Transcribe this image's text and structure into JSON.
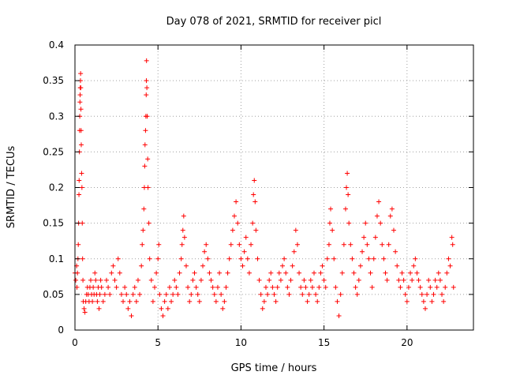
{
  "chart_data": {
    "type": "scatter",
    "title": "Day 078 of 2021, SRMTID for receiver picl",
    "xlabel": "GPS time / hours",
    "ylabel": "SRMTID / TECUs",
    "xlim": [
      0,
      24
    ],
    "ylim": [
      0,
      0.4
    ],
    "xticks": [
      0,
      5,
      10,
      15,
      20
    ],
    "xtick_labels": [
      "0",
      "5",
      "10",
      "15",
      "20"
    ],
    "yticks": [
      0,
      0.05,
      0.1,
      0.15,
      0.2,
      0.25,
      0.3,
      0.35,
      0.4
    ],
    "ytick_labels": [
      "0",
      "0.05",
      "0.1",
      "0.15",
      "0.2",
      "0.25",
      "0.3",
      "0.35",
      "0.4"
    ],
    "grid": true,
    "marker": "+",
    "color": "#ff0000",
    "series": [
      {
        "name": "SRMTID",
        "points": [
          [
            0.0,
            0.08
          ],
          [
            0.05,
            0.07
          ],
          [
            0.1,
            0.09
          ],
          [
            0.12,
            0.06
          ],
          [
            0.15,
            0.08
          ],
          [
            0.18,
            0.1
          ],
          [
            0.2,
            0.12
          ],
          [
            0.22,
            0.15
          ],
          [
            0.24,
            0.19
          ],
          [
            0.25,
            0.21
          ],
          [
            0.27,
            0.25
          ],
          [
            0.28,
            0.28
          ],
          [
            0.29,
            0.3
          ],
          [
            0.3,
            0.32
          ],
          [
            0.31,
            0.33
          ],
          [
            0.32,
            0.34
          ],
          [
            0.33,
            0.35
          ],
          [
            0.34,
            0.36
          ],
          [
            0.35,
            0.34
          ],
          [
            0.36,
            0.31
          ],
          [
            0.37,
            0.28
          ],
          [
            0.38,
            0.26
          ],
          [
            0.4,
            0.22
          ],
          [
            0.42,
            0.2
          ],
          [
            0.44,
            0.15
          ],
          [
            0.46,
            0.1
          ],
          [
            0.48,
            0.07
          ],
          [
            0.5,
            0.04
          ],
          [
            0.55,
            0.03
          ],
          [
            0.6,
            0.025
          ],
          [
            0.65,
            0.04
          ],
          [
            0.7,
            0.05
          ],
          [
            0.75,
            0.06
          ],
          [
            0.8,
            0.05
          ],
          [
            0.85,
            0.04
          ],
          [
            0.9,
            0.06
          ],
          [
            0.95,
            0.07
          ],
          [
            1.0,
            0.05
          ],
          [
            1.05,
            0.04
          ],
          [
            1.1,
            0.06
          ],
          [
            1.15,
            0.05
          ],
          [
            1.2,
            0.08
          ],
          [
            1.25,
            0.07
          ],
          [
            1.3,
            0.05
          ],
          [
            1.35,
            0.04
          ],
          [
            1.4,
            0.06
          ],
          [
            1.45,
            0.03
          ],
          [
            1.5,
            0.05
          ],
          [
            1.55,
            0.07
          ],
          [
            1.6,
            0.06
          ],
          [
            1.7,
            0.04
          ],
          [
            1.8,
            0.05
          ],
          [
            1.9,
            0.07
          ],
          [
            2.0,
            0.06
          ],
          [
            2.1,
            0.05
          ],
          [
            2.2,
            0.08
          ],
          [
            2.3,
            0.09
          ],
          [
            2.4,
            0.07
          ],
          [
            2.5,
            0.06
          ],
          [
            2.6,
            0.1
          ],
          [
            2.7,
            0.08
          ],
          [
            2.8,
            0.05
          ],
          [
            2.9,
            0.04
          ],
          [
            3.0,
            0.06
          ],
          [
            3.1,
            0.05
          ],
          [
            3.2,
            0.03
          ],
          [
            3.3,
            0.04
          ],
          [
            3.4,
            0.02
          ],
          [
            3.5,
            0.05
          ],
          [
            3.6,
            0.06
          ],
          [
            3.7,
            0.04
          ],
          [
            3.8,
            0.07
          ],
          [
            3.9,
            0.05
          ],
          [
            4.0,
            0.09
          ],
          [
            4.05,
            0.12
          ],
          [
            4.1,
            0.14
          ],
          [
            4.15,
            0.17
          ],
          [
            4.18,
            0.2
          ],
          [
            4.2,
            0.23
          ],
          [
            4.22,
            0.26
          ],
          [
            4.25,
            0.28
          ],
          [
            4.27,
            0.3
          ],
          [
            4.29,
            0.33
          ],
          [
            4.3,
            0.35
          ],
          [
            4.31,
            0.378
          ],
          [
            4.33,
            0.34
          ],
          [
            4.35,
            0.3
          ],
          [
            4.38,
            0.24
          ],
          [
            4.4,
            0.2
          ],
          [
            4.45,
            0.15
          ],
          [
            4.5,
            0.1
          ],
          [
            4.6,
            0.07
          ],
          [
            4.7,
            0.04
          ],
          [
            4.8,
            0.06
          ],
          [
            4.9,
            0.08
          ],
          [
            5.0,
            0.1
          ],
          [
            5.05,
            0.12
          ],
          [
            5.1,
            0.05
          ],
          [
            5.2,
            0.03
          ],
          [
            5.3,
            0.02
          ],
          [
            5.4,
            0.04
          ],
          [
            5.5,
            0.05
          ],
          [
            5.6,
            0.03
          ],
          [
            5.7,
            0.06
          ],
          [
            5.8,
            0.04
          ],
          [
            5.9,
            0.05
          ],
          [
            6.0,
            0.07
          ],
          [
            6.1,
            0.06
          ],
          [
            6.2,
            0.05
          ],
          [
            6.3,
            0.08
          ],
          [
            6.4,
            0.1
          ],
          [
            6.45,
            0.12
          ],
          [
            6.5,
            0.14
          ],
          [
            6.55,
            0.16
          ],
          [
            6.6,
            0.13
          ],
          [
            6.7,
            0.09
          ],
          [
            6.8,
            0.06
          ],
          [
            6.9,
            0.04
          ],
          [
            7.0,
            0.05
          ],
          [
            7.1,
            0.07
          ],
          [
            7.2,
            0.08
          ],
          [
            7.3,
            0.06
          ],
          [
            7.4,
            0.05
          ],
          [
            7.5,
            0.04
          ],
          [
            7.6,
            0.07
          ],
          [
            7.7,
            0.09
          ],
          [
            7.8,
            0.11
          ],
          [
            7.9,
            0.12
          ],
          [
            8.0,
            0.1
          ],
          [
            8.1,
            0.08
          ],
          [
            8.2,
            0.07
          ],
          [
            8.3,
            0.06
          ],
          [
            8.4,
            0.05
          ],
          [
            8.5,
            0.04
          ],
          [
            8.6,
            0.06
          ],
          [
            8.7,
            0.08
          ],
          [
            8.8,
            0.05
          ],
          [
            8.9,
            0.03
          ],
          [
            9.0,
            0.04
          ],
          [
            9.1,
            0.06
          ],
          [
            9.2,
            0.08
          ],
          [
            9.3,
            0.1
          ],
          [
            9.4,
            0.12
          ],
          [
            9.5,
            0.14
          ],
          [
            9.6,
            0.16
          ],
          [
            9.7,
            0.18
          ],
          [
            9.8,
            0.15
          ],
          [
            9.9,
            0.12
          ],
          [
            10.0,
            0.1
          ],
          [
            10.1,
            0.09
          ],
          [
            10.2,
            0.11
          ],
          [
            10.3,
            0.13
          ],
          [
            10.4,
            0.1
          ],
          [
            10.5,
            0.08
          ],
          [
            10.6,
            0.12
          ],
          [
            10.7,
            0.15
          ],
          [
            10.75,
            0.19
          ],
          [
            10.8,
            0.21
          ],
          [
            10.85,
            0.18
          ],
          [
            10.9,
            0.14
          ],
          [
            11.0,
            0.1
          ],
          [
            11.1,
            0.07
          ],
          [
            11.2,
            0.05
          ],
          [
            11.3,
            0.03
          ],
          [
            11.4,
            0.04
          ],
          [
            11.5,
            0.06
          ],
          [
            11.6,
            0.05
          ],
          [
            11.7,
            0.07
          ],
          [
            11.8,
            0.08
          ],
          [
            11.9,
            0.06
          ],
          [
            12.0,
            0.05
          ],
          [
            12.1,
            0.04
          ],
          [
            12.2,
            0.06
          ],
          [
            12.3,
            0.08
          ],
          [
            12.4,
            0.07
          ],
          [
            12.5,
            0.09
          ],
          [
            12.6,
            0.1
          ],
          [
            12.7,
            0.08
          ],
          [
            12.8,
            0.06
          ],
          [
            12.9,
            0.05
          ],
          [
            13.0,
            0.07
          ],
          [
            13.1,
            0.09
          ],
          [
            13.2,
            0.11
          ],
          [
            13.3,
            0.14
          ],
          [
            13.4,
            0.12
          ],
          [
            13.5,
            0.08
          ],
          [
            13.6,
            0.06
          ],
          [
            13.7,
            0.05
          ],
          [
            13.8,
            0.07
          ],
          [
            13.9,
            0.06
          ],
          [
            14.0,
            0.04
          ],
          [
            14.1,
            0.05
          ],
          [
            14.2,
            0.07
          ],
          [
            14.3,
            0.06
          ],
          [
            14.4,
            0.08
          ],
          [
            14.5,
            0.05
          ],
          [
            14.6,
            0.04
          ],
          [
            14.7,
            0.06
          ],
          [
            14.8,
            0.08
          ],
          [
            14.9,
            0.09
          ],
          [
            15.0,
            0.07
          ],
          [
            15.1,
            0.06
          ],
          [
            15.2,
            0.1
          ],
          [
            15.3,
            0.12
          ],
          [
            15.35,
            0.15
          ],
          [
            15.4,
            0.17
          ],
          [
            15.5,
            0.14
          ],
          [
            15.6,
            0.1
          ],
          [
            15.7,
            0.06
          ],
          [
            15.8,
            0.04
          ],
          [
            15.9,
            0.02
          ],
          [
            16.0,
            0.05
          ],
          [
            16.1,
            0.08
          ],
          [
            16.2,
            0.12
          ],
          [
            16.3,
            0.17
          ],
          [
            16.35,
            0.2
          ],
          [
            16.4,
            0.22
          ],
          [
            16.45,
            0.19
          ],
          [
            16.5,
            0.15
          ],
          [
            16.6,
            0.12
          ],
          [
            16.7,
            0.1
          ],
          [
            16.8,
            0.08
          ],
          [
            16.9,
            0.06
          ],
          [
            17.0,
            0.05
          ],
          [
            17.1,
            0.07
          ],
          [
            17.2,
            0.09
          ],
          [
            17.3,
            0.11
          ],
          [
            17.4,
            0.13
          ],
          [
            17.5,
            0.15
          ],
          [
            17.6,
            0.12
          ],
          [
            17.7,
            0.1
          ],
          [
            17.8,
            0.08
          ],
          [
            17.9,
            0.06
          ],
          [
            18.0,
            0.1
          ],
          [
            18.1,
            0.13
          ],
          [
            18.2,
            0.16
          ],
          [
            18.3,
            0.18
          ],
          [
            18.4,
            0.15
          ],
          [
            18.5,
            0.12
          ],
          [
            18.6,
            0.1
          ],
          [
            18.7,
            0.08
          ],
          [
            18.8,
            0.07
          ],
          [
            18.9,
            0.12
          ],
          [
            19.0,
            0.16
          ],
          [
            19.1,
            0.17
          ],
          [
            19.2,
            0.14
          ],
          [
            19.3,
            0.11
          ],
          [
            19.4,
            0.09
          ],
          [
            19.5,
            0.07
          ],
          [
            19.6,
            0.06
          ],
          [
            19.7,
            0.08
          ],
          [
            19.8,
            0.07
          ],
          [
            19.9,
            0.05
          ],
          [
            20.0,
            0.04
          ],
          [
            20.1,
            0.06
          ],
          [
            20.2,
            0.08
          ],
          [
            20.3,
            0.07
          ],
          [
            20.4,
            0.09
          ],
          [
            20.5,
            0.1
          ],
          [
            20.6,
            0.08
          ],
          [
            20.7,
            0.07
          ],
          [
            20.8,
            0.06
          ],
          [
            20.9,
            0.05
          ],
          [
            21.0,
            0.04
          ],
          [
            21.1,
            0.03
          ],
          [
            21.2,
            0.05
          ],
          [
            21.3,
            0.07
          ],
          [
            21.4,
            0.06
          ],
          [
            21.5,
            0.04
          ],
          [
            21.6,
            0.05
          ],
          [
            21.7,
            0.07
          ],
          [
            21.8,
            0.06
          ],
          [
            21.9,
            0.08
          ],
          [
            22.0,
            0.07
          ],
          [
            22.1,
            0.05
          ],
          [
            22.2,
            0.04
          ],
          [
            22.3,
            0.06
          ],
          [
            22.4,
            0.08
          ],
          [
            22.5,
            0.1
          ],
          [
            22.6,
            0.09
          ],
          [
            22.7,
            0.13
          ],
          [
            22.75,
            0.12
          ],
          [
            22.8,
            0.06
          ]
        ]
      }
    ]
  }
}
